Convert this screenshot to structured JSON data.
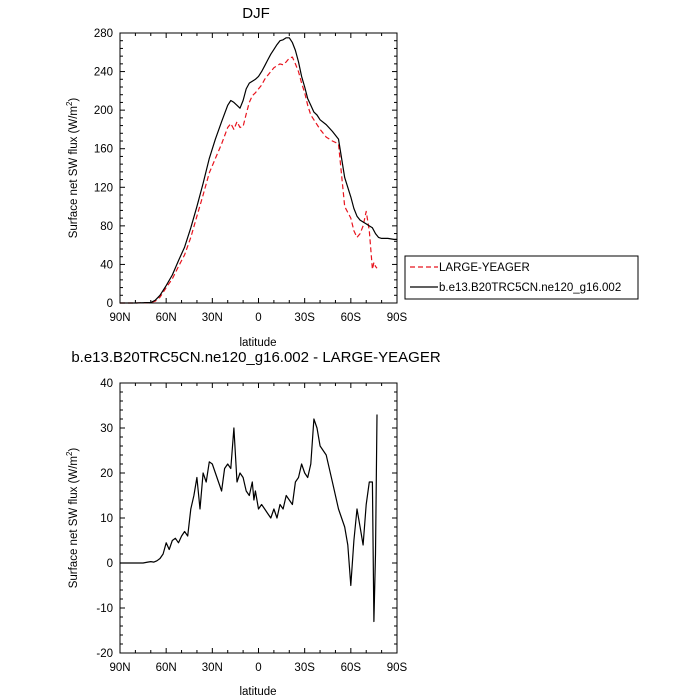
{
  "chart_data": [
    {
      "type": "line",
      "title": "DJF",
      "xlabel": "latitude",
      "ylabel_main": "Surface net SW flux (W/m",
      "ylabel_sup": "2",
      "ylabel_close": ")",
      "xlim": [
        90,
        -90
      ],
      "ylim": [
        0,
        280
      ],
      "xticks": [
        90,
        60,
        30,
        0,
        -30,
        -60,
        -90
      ],
      "xtick_labels": [
        "90N",
        "60N",
        "30N",
        "0",
        "30S",
        "60S",
        "90S"
      ],
      "yticks": [
        0,
        40,
        80,
        120,
        160,
        200,
        240,
        280
      ],
      "ytick_labels": [
        "0",
        "40",
        "80",
        "120",
        "160",
        "200",
        "240",
        "280"
      ],
      "legend": "outside-right",
      "series": [
        {
          "name": "LARGE-YEAGER",
          "color": "#e8141e",
          "dash": true,
          "x": [
            90,
            80,
            70,
            67,
            64,
            60,
            56,
            52,
            48,
            44,
            40,
            36,
            32,
            28,
            24,
            20,
            18,
            16,
            14,
            12,
            10,
            8,
            6,
            4,
            2,
            0,
            -2,
            -4,
            -6,
            -8,
            -10,
            -12,
            -14,
            -16,
            -18,
            -20,
            -22,
            -24,
            -26,
            -28,
            -30,
            -32,
            -34,
            -36,
            -38,
            -40,
            -44,
            -48,
            -52,
            -56,
            -60,
            -62,
            -64,
            -66,
            -68,
            -70,
            -72,
            -74,
            -75,
            -76,
            -77
          ],
          "y": [
            0,
            0,
            0.5,
            2,
            6,
            16,
            25,
            38,
            50,
            68,
            90,
            112,
            135,
            150,
            165,
            182,
            186,
            180,
            188,
            182,
            183,
            196,
            208,
            215,
            218,
            222,
            226,
            232,
            236,
            240,
            244,
            246,
            248,
            247,
            250,
            254,
            255,
            248,
            240,
            228,
            218,
            205,
            195,
            190,
            185,
            180,
            172,
            168,
            165,
            100,
            88,
            75,
            68,
            72,
            80,
            95,
            75,
            35,
            42,
            38,
            36
          ],
          "x_used": 77
        },
        {
          "name": "b.e13.B20TRC5CN.ne120_g16.002",
          "color": "#000000",
          "dash": false,
          "x": [
            90,
            80,
            70,
            67,
            64,
            60,
            56,
            52,
            48,
            44,
            40,
            36,
            32,
            28,
            24,
            20,
            18,
            16,
            14,
            12,
            10,
            8,
            6,
            4,
            2,
            0,
            -2,
            -4,
            -6,
            -8,
            -10,
            -12,
            -14,
            -16,
            -18,
            -20,
            -22,
            -24,
            -26,
            -28,
            -30,
            -32,
            -34,
            -36,
            -38,
            -40,
            -44,
            -48,
            -52,
            -56,
            -60,
            -62,
            -64,
            -66,
            -68,
            -70,
            -72,
            -74,
            -76,
            -78,
            -80,
            -84,
            -88,
            -90
          ],
          "y": [
            0,
            0,
            0.5,
            3,
            8,
            18,
            29,
            44,
            58,
            78,
            100,
            124,
            150,
            170,
            188,
            205,
            210,
            208,
            205,
            202,
            210,
            222,
            228,
            230,
            232,
            235,
            240,
            246,
            252,
            258,
            263,
            268,
            272,
            273,
            275,
            275,
            270,
            262,
            250,
            235,
            224,
            212,
            205,
            198,
            195,
            190,
            185,
            178,
            170,
            130,
            110,
            98,
            90,
            86,
            84,
            82,
            80,
            78,
            72,
            68,
            67,
            67,
            66,
            66
          ]
        }
      ]
    },
    {
      "type": "line",
      "title": "b.e13.B20TRC5CN.ne120_g16.002 - LARGE-YEAGER",
      "xlabel": "latitude",
      "ylabel_main": "Surface net SW flux (W/m",
      "ylabel_sup": "2",
      "ylabel_close": ")",
      "xlim": [
        90,
        -90
      ],
      "ylim": [
        -20,
        40
      ],
      "xticks": [
        90,
        60,
        30,
        0,
        -30,
        -60,
        -90
      ],
      "xtick_labels": [
        "90N",
        "60N",
        "30N",
        "0",
        "30S",
        "60S",
        "90S"
      ],
      "yticks": [
        -20,
        -10,
        0,
        10,
        20,
        30,
        40
      ],
      "ytick_labels": [
        "-20",
        "-10",
        "0",
        "10",
        "20",
        "30",
        "40"
      ],
      "series": [
        {
          "name": "",
          "color": "#000000",
          "dash": false,
          "x": [
            90,
            80,
            75,
            72,
            70,
            68,
            66,
            64,
            62,
            60,
            58,
            56,
            54,
            52,
            50,
            48,
            46,
            44,
            42,
            40,
            38,
            36,
            34,
            32,
            30,
            28,
            26,
            24,
            22,
            20,
            18,
            16,
            14,
            13,
            12,
            10,
            8,
            6,
            4,
            3,
            2,
            0,
            -2,
            -4,
            -6,
            -8,
            -10,
            -12,
            -14,
            -16,
            -18,
            -20,
            -22,
            -24,
            -26,
            -28,
            -30,
            -32,
            -34,
            -36,
            -38,
            -40,
            -44,
            -48,
            -52,
            -56,
            -58,
            -60,
            -62,
            -64,
            -66,
            -68,
            -70,
            -72,
            -74,
            -75,
            -76,
            -77
          ],
          "y": [
            0,
            0,
            0,
            0.2,
            0.3,
            0.2,
            0.5,
            1,
            2,
            4.5,
            3,
            5,
            5.5,
            4.5,
            6,
            7,
            6,
            12,
            15,
            19,
            12,
            20,
            18,
            22.5,
            22,
            20,
            18,
            16,
            21,
            22,
            21,
            30,
            18,
            19,
            20,
            19,
            16,
            15,
            18,
            14,
            16,
            12,
            13,
            12,
            11,
            10,
            12,
            10,
            13,
            12,
            15,
            14,
            13,
            18,
            19,
            22,
            20,
            19,
            22,
            32,
            30,
            26,
            24,
            18,
            12,
            8,
            4,
            -5,
            5,
            12,
            8,
            4,
            13,
            18,
            18,
            -13,
            2,
            33
          ]
        }
      ]
    }
  ]
}
